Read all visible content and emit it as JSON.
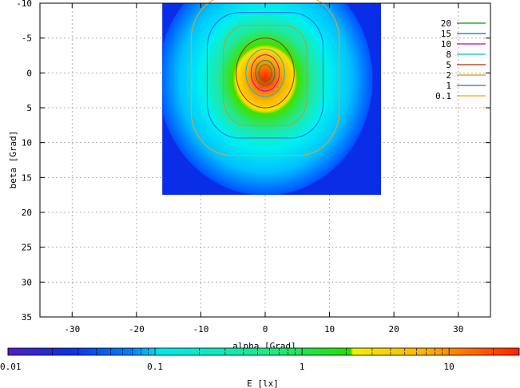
{
  "chart_data": {
    "type": "heatmap",
    "title": "",
    "xlabel": "alpha [Grad]",
    "ylabel": "beta [Grad]",
    "xlim": [
      -35,
      35
    ],
    "ylim": [
      -10,
      35
    ],
    "y_axis_inverted": true,
    "grid": true,
    "x_ticks": [
      "-30",
      "-20",
      "-10",
      "0",
      "10",
      "20",
      "30"
    ],
    "y_ticks": [
      "-10",
      "-5",
      "0",
      "5",
      "10",
      "15",
      "20",
      "25",
      "30",
      "35"
    ],
    "heatmap_extent": {
      "alpha": [
        -16,
        18
      ],
      "beta": [
        -10,
        17.5
      ]
    },
    "peak": {
      "alpha": 0,
      "beta": 0
    },
    "contour_legend": {
      "placement": "top-right",
      "entries": [
        {
          "label": "20",
          "color": "#00a000"
        },
        {
          "label": "15",
          "color": "#008080"
        },
        {
          "label": "10",
          "color": "#c000c0"
        },
        {
          "label": "8",
          "color": "#00c0c0"
        },
        {
          "label": "5",
          "color": "#a03000"
        },
        {
          "label": "2",
          "color": "#c0a000"
        },
        {
          "label": "1",
          "color": "#3060ff"
        },
        {
          "label": "0.1",
          "color": "#ffa000"
        }
      ]
    },
    "contours": [
      {
        "level": "20",
        "alpha_halfwidth": 1.0,
        "beta_halfheight": 1.2
      },
      {
        "level": "15",
        "alpha_halfwidth": 1.5,
        "beta_halfheight": 1.8
      },
      {
        "level": "10",
        "alpha_halfwidth": 2.2,
        "beta_halfheight": 2.6
      },
      {
        "level": "8",
        "alpha_halfwidth": 3.0,
        "beta_halfheight": 3.4
      },
      {
        "level": "5",
        "alpha_halfwidth": 4.5,
        "beta_halfheight": 5.0
      },
      {
        "level": "2",
        "alpha_halfwidth": 6.5,
        "beta_halfheight": 7.2
      },
      {
        "level": "1",
        "alpha_halfwidth": 9.0,
        "beta_halfheight": 9.0
      },
      {
        "level": "0.1",
        "alpha_halfwidth": 11.5,
        "beta_halfheight": 11.5
      }
    ],
    "colorbar": {
      "label": "E [lx]",
      "scale": "log",
      "range": [
        0.01,
        30
      ],
      "ticks": [
        "0.01",
        "0.1",
        "1",
        "10"
      ]
    }
  }
}
